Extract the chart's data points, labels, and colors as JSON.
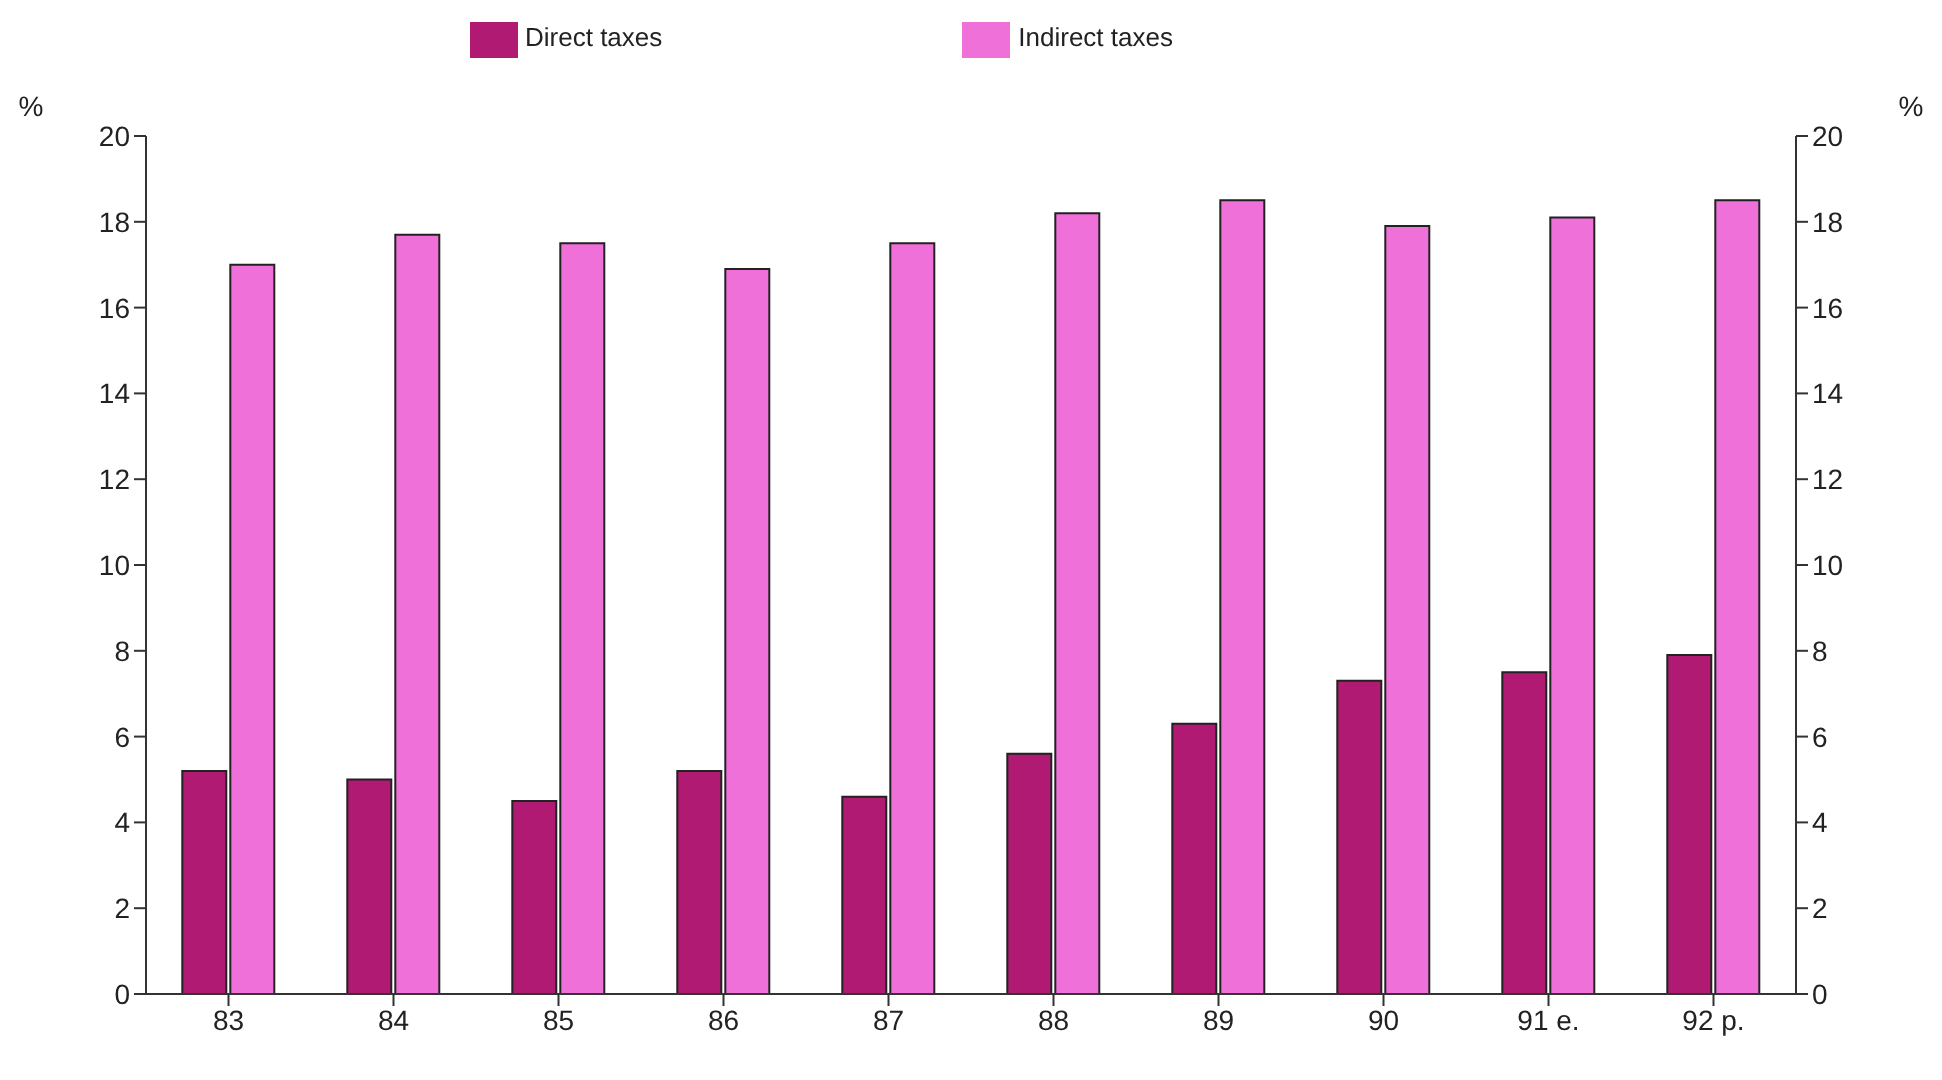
{
  "chart_data": {
    "type": "bar",
    "categories": [
      "83",
      "84",
      "85",
      "86",
      "87",
      "88",
      "89",
      "90",
      "91 e.",
      "92 p."
    ],
    "series": [
      {
        "name": "Direct taxes",
        "color": "#b01a72",
        "values": [
          5.2,
          5.0,
          4.5,
          5.2,
          4.6,
          5.6,
          6.3,
          7.3,
          7.5,
          7.9
        ]
      },
      {
        "name": "Indirect taxes",
        "color": "#ee70d8",
        "values": [
          17.0,
          17.7,
          17.5,
          16.9,
          17.5,
          18.2,
          18.5,
          17.9,
          18.1,
          18.5
        ]
      }
    ],
    "ylabel": "%",
    "y2label": "%",
    "ylim": [
      0,
      20
    ],
    "yticks": [
      0,
      2,
      4,
      6,
      8,
      10,
      12,
      14,
      16,
      18,
      20
    ],
    "y2lim": [
      0,
      20
    ],
    "y2ticks": [
      0,
      2,
      4,
      6,
      8,
      10,
      12,
      14,
      16,
      18,
      20
    ],
    "legend": "top",
    "grid": false
  }
}
